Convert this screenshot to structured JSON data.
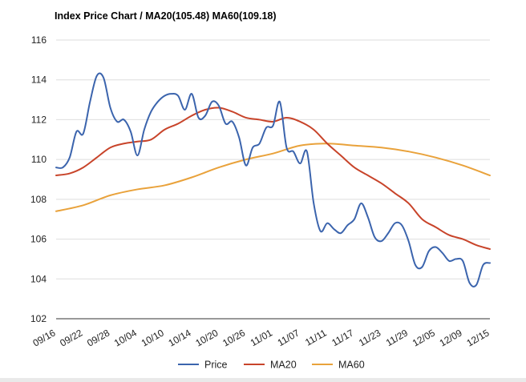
{
  "chart_data": {
    "type": "line",
    "title": "Index Price Chart / MA20(105.48) MA60(109.18)",
    "xlabel": "",
    "ylabel": "",
    "ylim": [
      102,
      116
    ],
    "y_ticks": [
      102,
      104,
      106,
      108,
      110,
      112,
      114,
      116
    ],
    "grid": "horizontal",
    "legend_position": "bottom",
    "x_tick_labels": [
      "09/16",
      "09/22",
      "09/28",
      "10/04",
      "10/10",
      "10/14",
      "10/20",
      "10/26",
      "11/01",
      "11/07",
      "11/11",
      "11/17",
      "11/23",
      "11/29",
      "12/05",
      "12/09",
      "12/15"
    ],
    "series": [
      {
        "name": "Price",
        "color": "#3b64ad",
        "values": [
          [
            0,
            109.6
          ],
          [
            1,
            109.6
          ],
          [
            2,
            110.1
          ],
          [
            3,
            111.4
          ],
          [
            4,
            111.3
          ],
          [
            5,
            112.9
          ],
          [
            6,
            114.2
          ],
          [
            7,
            114.1
          ],
          [
            8,
            112.6
          ],
          [
            9,
            111.9
          ],
          [
            10,
            112.0
          ],
          [
            11,
            111.4
          ],
          [
            12,
            110.2
          ],
          [
            13,
            111.5
          ],
          [
            14,
            112.4
          ],
          [
            15,
            112.9
          ],
          [
            16,
            113.2
          ],
          [
            17,
            113.3
          ],
          [
            18,
            113.2
          ],
          [
            19,
            112.5
          ],
          [
            20,
            113.3
          ],
          [
            21,
            112.1
          ],
          [
            22,
            112.2
          ],
          [
            23,
            112.9
          ],
          [
            24,
            112.7
          ],
          [
            25,
            111.8
          ],
          [
            26,
            111.9
          ],
          [
            27,
            111.1
          ],
          [
            28,
            109.7
          ],
          [
            29,
            110.6
          ],
          [
            30,
            110.8
          ],
          [
            31,
            111.6
          ],
          [
            32,
            111.7
          ],
          [
            33,
            112.9
          ],
          [
            34,
            110.6
          ],
          [
            35,
            110.4
          ],
          [
            36,
            109.8
          ],
          [
            37,
            110.4
          ],
          [
            38,
            107.8
          ],
          [
            39,
            106.4
          ],
          [
            40,
            106.8
          ],
          [
            41,
            106.5
          ],
          [
            42,
            106.3
          ],
          [
            43,
            106.7
          ],
          [
            44,
            107.0
          ],
          [
            45,
            107.8
          ],
          [
            46,
            107.1
          ],
          [
            47,
            106.1
          ],
          [
            48,
            105.9
          ],
          [
            49,
            106.3
          ],
          [
            50,
            106.8
          ],
          [
            51,
            106.7
          ],
          [
            52,
            105.9
          ],
          [
            53,
            104.7
          ],
          [
            54,
            104.6
          ],
          [
            55,
            105.4
          ],
          [
            56,
            105.6
          ],
          [
            57,
            105.3
          ],
          [
            58,
            104.9
          ],
          [
            59,
            105.0
          ],
          [
            60,
            104.9
          ],
          [
            61,
            103.8
          ],
          [
            62,
            103.7
          ],
          [
            63,
            104.7
          ],
          [
            64,
            104.8
          ]
        ]
      },
      {
        "name": "MA20",
        "color": "#c8442a",
        "values": [
          [
            0,
            109.2
          ],
          [
            2,
            109.3
          ],
          [
            4,
            109.6
          ],
          [
            6,
            110.1
          ],
          [
            8,
            110.6
          ],
          [
            10,
            110.8
          ],
          [
            12,
            110.9
          ],
          [
            14,
            111.0
          ],
          [
            16,
            111.5
          ],
          [
            18,
            111.8
          ],
          [
            20,
            112.2
          ],
          [
            22,
            112.5
          ],
          [
            24,
            112.6
          ],
          [
            26,
            112.4
          ],
          [
            28,
            112.1
          ],
          [
            30,
            112.0
          ],
          [
            32,
            111.9
          ],
          [
            34,
            112.1
          ],
          [
            36,
            111.9
          ],
          [
            38,
            111.5
          ],
          [
            40,
            110.8
          ],
          [
            42,
            110.2
          ],
          [
            44,
            109.6
          ],
          [
            46,
            109.2
          ],
          [
            48,
            108.8
          ],
          [
            50,
            108.3
          ],
          [
            52,
            107.8
          ],
          [
            54,
            107.0
          ],
          [
            56,
            106.6
          ],
          [
            58,
            106.2
          ],
          [
            60,
            106.0
          ],
          [
            62,
            105.7
          ],
          [
            64,
            105.5
          ]
        ]
      },
      {
        "name": "MA60",
        "color": "#e9a23b",
        "values": [
          [
            0,
            107.4
          ],
          [
            4,
            107.7
          ],
          [
            8,
            108.2
          ],
          [
            12,
            108.5
          ],
          [
            16,
            108.7
          ],
          [
            20,
            109.1
          ],
          [
            24,
            109.6
          ],
          [
            28,
            110.0
          ],
          [
            32,
            110.3
          ],
          [
            36,
            110.7
          ],
          [
            40,
            110.8
          ],
          [
            44,
            110.7
          ],
          [
            48,
            110.6
          ],
          [
            52,
            110.4
          ],
          [
            56,
            110.1
          ],
          [
            60,
            109.7
          ],
          [
            64,
            109.2
          ]
        ]
      }
    ]
  }
}
